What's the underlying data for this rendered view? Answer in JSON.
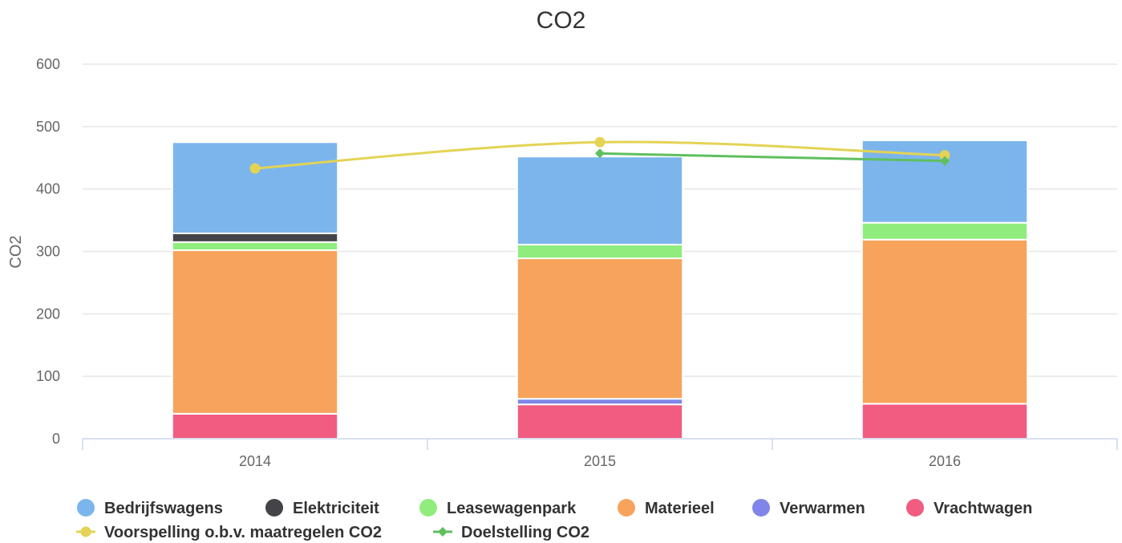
{
  "chart_data": {
    "type": "bar",
    "title": "CO2",
    "xlabel": "",
    "ylabel": "CO2",
    "categories": [
      "2014",
      "2015",
      "2016"
    ],
    "ylim": [
      0,
      600
    ],
    "yticks": [
      0,
      100,
      200,
      300,
      400,
      500,
      600
    ],
    "stacked": true,
    "grid": true,
    "legend_position": "bottom",
    "series": [
      {
        "name": "Vrachtwagen",
        "type": "bar",
        "color": "#f15c80",
        "values": [
          40,
          55,
          56
        ]
      },
      {
        "name": "Verwarmen",
        "type": "bar",
        "color": "#8085e9",
        "values": [
          0,
          9,
          0
        ]
      },
      {
        "name": "Materieel",
        "type": "bar",
        "color": "#f7a35c",
        "values": [
          262,
          225,
          263
        ]
      },
      {
        "name": "Leasewagenpark",
        "type": "bar",
        "color": "#90ed7d",
        "values": [
          13,
          22,
          27
        ]
      },
      {
        "name": "Elektriciteit",
        "type": "bar",
        "color": "#434348",
        "values": [
          14,
          0,
          0
        ]
      },
      {
        "name": "Bedrijfswagens",
        "type": "bar",
        "color": "#7cb5ec",
        "values": [
          146,
          141,
          132
        ]
      },
      {
        "name": "Voorspelling o.b.v. maatregelen CO2",
        "type": "line",
        "color": "#e4d354",
        "marker": "circle",
        "values": [
          433,
          475,
          454
        ]
      },
      {
        "name": "Doelstelling CO2",
        "type": "line",
        "color": "#5fbf5f",
        "marker": "diamond",
        "values": [
          null,
          457,
          445
        ]
      }
    ],
    "legend_order": [
      "Bedrijfswagens",
      "Elektriciteit",
      "Leasewagenpark",
      "Materieel",
      "Verwarmen",
      "Vrachtwagen",
      "Voorspelling o.b.v. maatregelen CO2",
      "Doelstelling CO2"
    ]
  }
}
